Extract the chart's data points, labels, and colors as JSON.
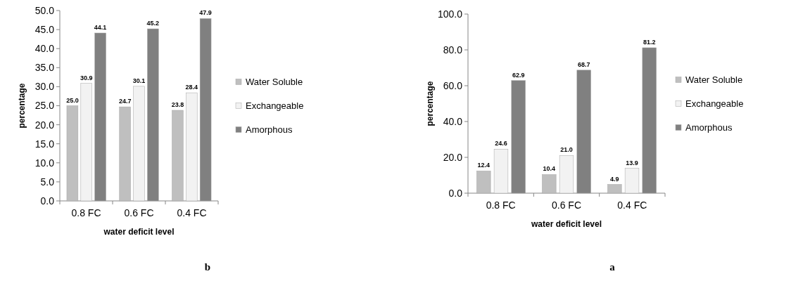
{
  "chart_data": [
    {
      "type": "bar",
      "xlabel": "water deficit level",
      "ylabel": "percentage",
      "annotations": [
        "b"
      ],
      "categories": [
        "0.8 FC",
        "0.6 FC",
        "0.4 FC"
      ],
      "series": [
        {
          "name": "Water Soluble",
          "color": "#bfbfbf",
          "values": [
            25.0,
            24.7,
            23.8
          ],
          "value_labels": [
            "25.0",
            "24.7",
            "23.8"
          ]
        },
        {
          "name": "Exchangeable",
          "color": "#f2f2f2",
          "values": [
            30.9,
            30.1,
            28.4
          ],
          "value_labels": [
            "30.9",
            "30.1",
            "28.4"
          ]
        },
        {
          "name": "Amorphous",
          "color": "#808080",
          "values": [
            44.1,
            45.2,
            47.9
          ],
          "value_labels": [
            "44.1",
            "45.2",
            "47.9"
          ]
        }
      ],
      "ylim": [
        0,
        50
      ],
      "yticks": [
        {
          "value": 0,
          "label": "0.0"
        },
        {
          "value": 5,
          "label": "5.0"
        },
        {
          "value": 10,
          "label": "10.0"
        },
        {
          "value": 15,
          "label": "15.0"
        },
        {
          "value": 20,
          "label": "20.0"
        },
        {
          "value": 25,
          "label": "25.0"
        },
        {
          "value": 30,
          "label": "30.0"
        },
        {
          "value": 35,
          "label": "35.0"
        },
        {
          "value": 40,
          "label": "40.0"
        },
        {
          "value": 45,
          "label": "45.0"
        },
        {
          "value": 50,
          "label": "50.0"
        }
      ],
      "legend": "right"
    },
    {
      "type": "bar",
      "xlabel": "water deficit level",
      "ylabel": "percentage",
      "annotations": [
        "a"
      ],
      "categories": [
        "0.8 FC",
        "0.6 FC",
        "0.4 FC"
      ],
      "series": [
        {
          "name": "Water Soluble",
          "color": "#bfbfbf",
          "values": [
            12.4,
            10.4,
            4.9
          ],
          "value_labels": [
            "12.4",
            "10.4",
            "4.9"
          ]
        },
        {
          "name": "Exchangeable",
          "color": "#f2f2f2",
          "values": [
            24.6,
            21.0,
            13.9
          ],
          "value_labels": [
            "24.6",
            "21.0",
            "13.9"
          ]
        },
        {
          "name": "Amorphous",
          "color": "#808080",
          "values": [
            62.9,
            68.7,
            81.2
          ],
          "value_labels": [
            "62.9",
            "68.7",
            "81.2"
          ]
        }
      ],
      "ylim": [
        0,
        100
      ],
      "yticks": [
        {
          "value": 0,
          "label": "0.0"
        },
        {
          "value": 20,
          "label": "20.0"
        },
        {
          "value": 40,
          "label": "40.0"
        },
        {
          "value": 60,
          "label": "60.0"
        },
        {
          "value": 80,
          "label": "80.0"
        },
        {
          "value": 100,
          "label": "100.0"
        }
      ],
      "legend": "right"
    }
  ]
}
